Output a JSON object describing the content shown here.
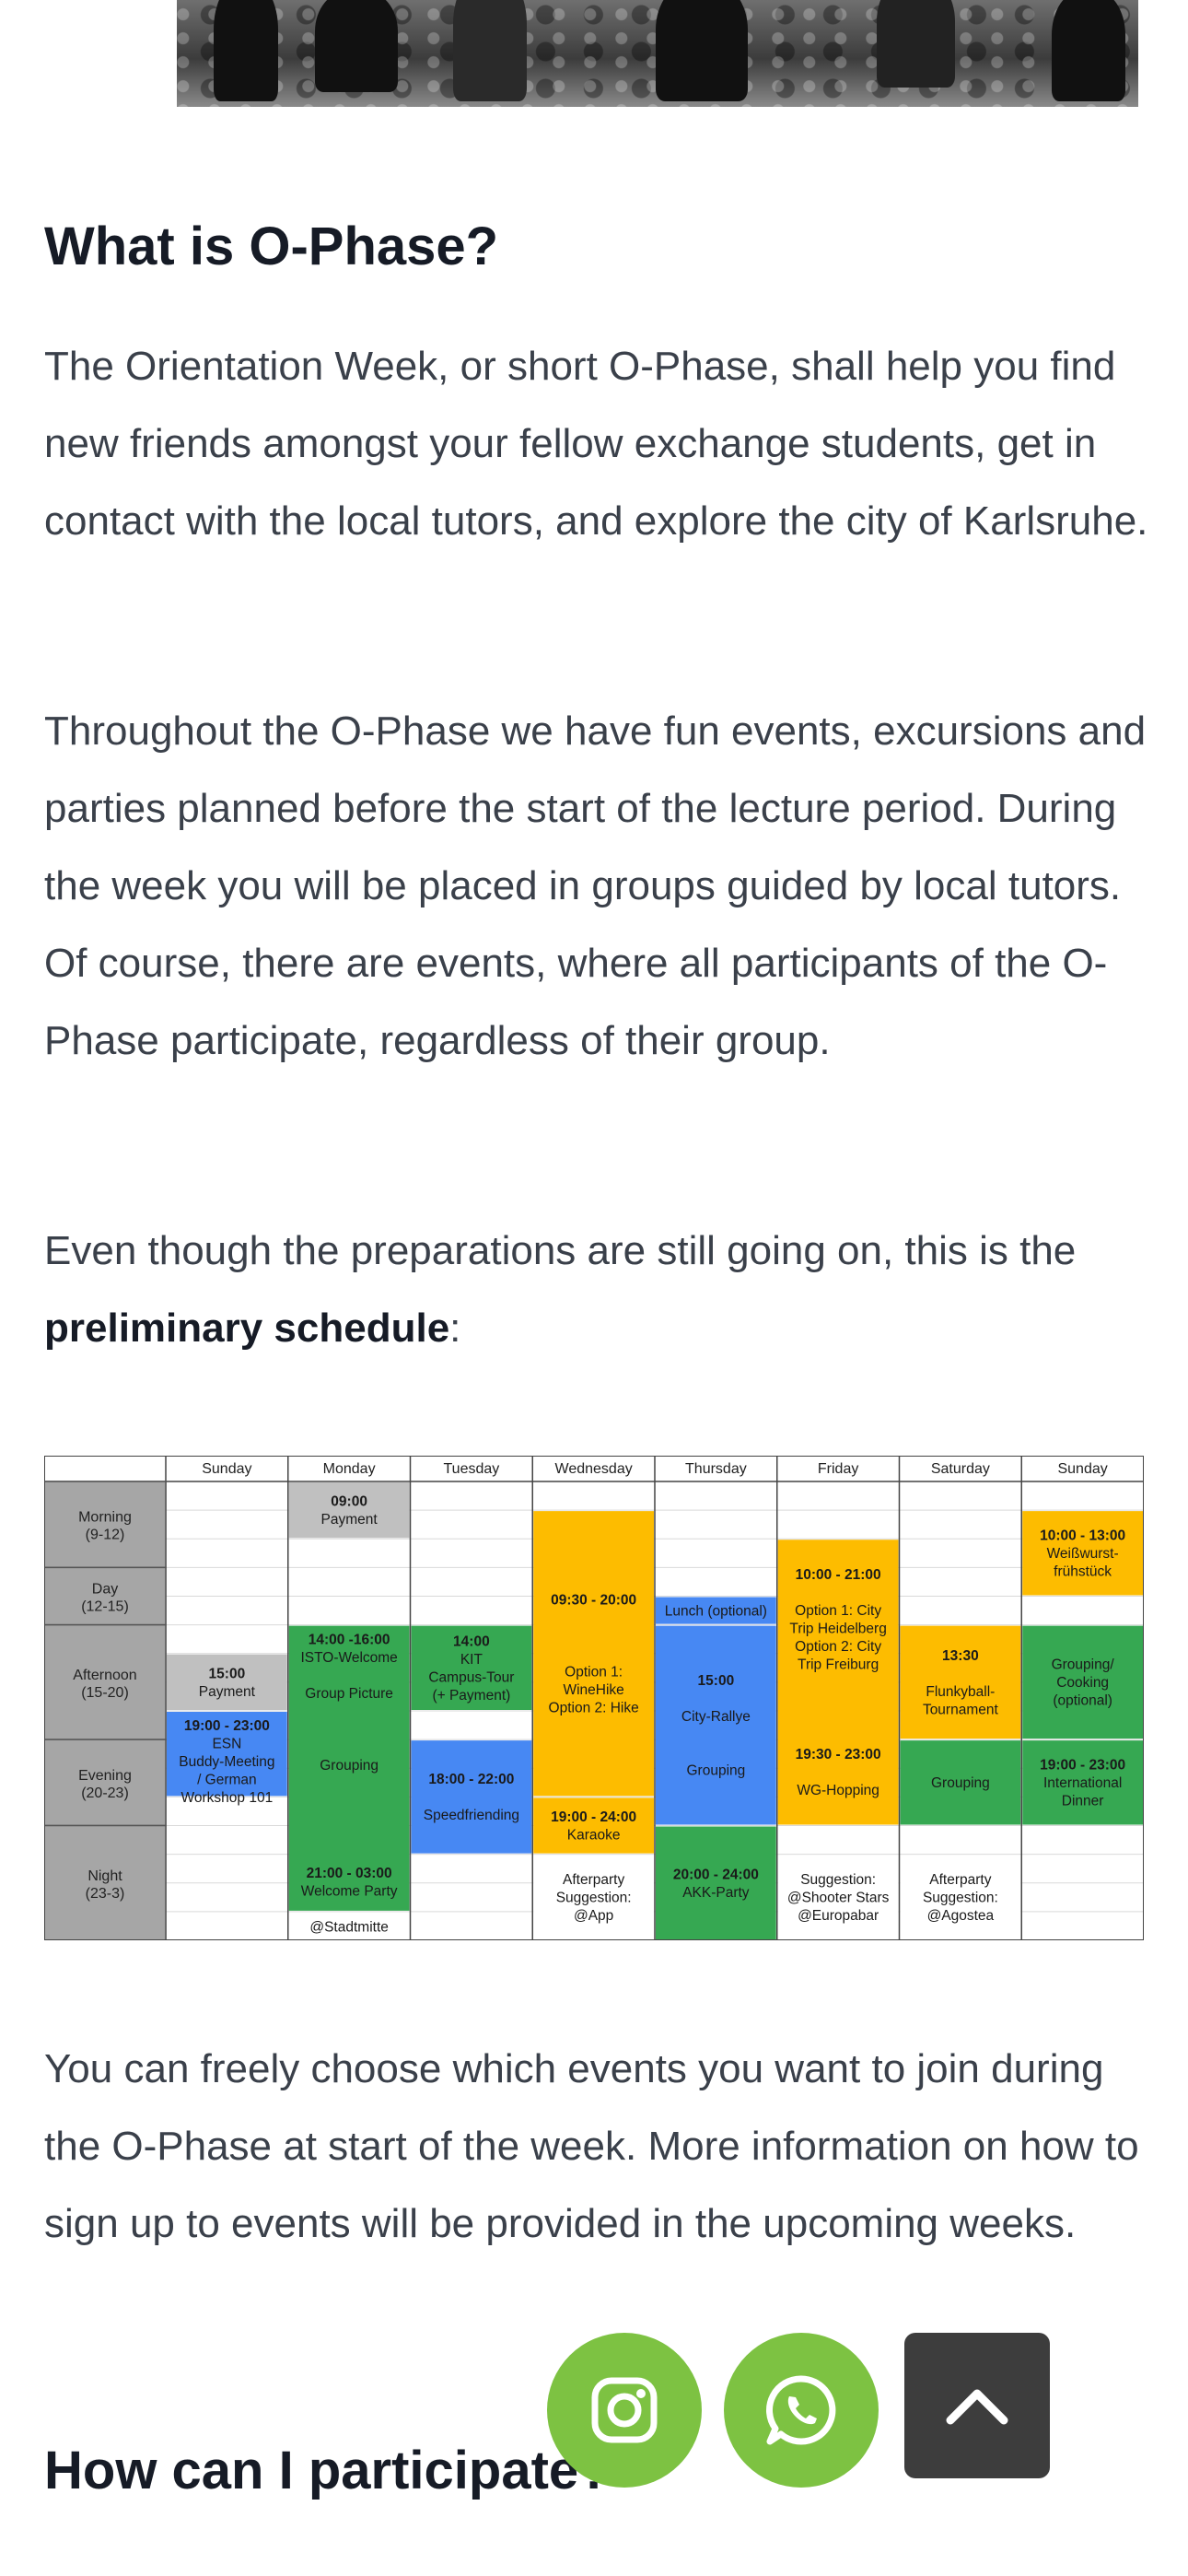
{
  "sections": {
    "what_heading": "What is O-Phase?",
    "intro_paragraph": "The Orientation Week, or short O-Phase, shall help you find new friends amongst your fellow exchange students, get in contact with the local tutors, and explore the city of Karlsruhe.",
    "events_paragraph": "Throughout the O-Phase we have fun events, excursions and parties planned before the start of the lecture period. During the week you will be placed in groups guided by local tutors. Of course, there are events, where all participants of the O-Phase participate, regardless of their group.",
    "schedule_intro": "Even though the preparations are still going on, this is the",
    "schedule_intro_bold": "preliminary schedule",
    "schedule_intro_end": ":",
    "choose_paragraph": "You can freely choose which events you want to join during the O-Phase at start of the week. More information on how to sign up to events will be provided in the upcoming weeks.",
    "participate_heading": "How can I participate?"
  },
  "schedule": {
    "days": [
      "Sunday",
      "Monday",
      "Tuesday",
      "Wednesday",
      "Thursday",
      "Friday",
      "Saturday",
      "Sunday"
    ],
    "periods": [
      {
        "name": "Morning",
        "range": "(9-12)"
      },
      {
        "name": "Day",
        "range": "(12-15)"
      },
      {
        "name": "Afternoon",
        "range": "(15-20)"
      },
      {
        "name": "Evening",
        "range": "(20-23)"
      },
      {
        "name": "Night",
        "range": "(23-3)"
      }
    ],
    "colors": {
      "gray": "#c0c0c0",
      "green": "#36a852",
      "orange": "#fdbc00",
      "blue": "#4788f3",
      "label_bg": "#a6a6a6",
      "white": "#ffffff"
    },
    "blocks": [
      {
        "day": 1,
        "start": 0,
        "end": 2,
        "color": "gray",
        "lines": [
          "09:00",
          "Payment"
        ],
        "bold": [
          0
        ]
      },
      {
        "day": 0,
        "start": 6,
        "end": 8,
        "color": "gray",
        "lines": [
          "15:00",
          "Payment"
        ],
        "bold": [
          0
        ]
      },
      {
        "day": 0,
        "start": 8,
        "end": 11,
        "color": "blue",
        "lines": [
          "19:00 - 23:00",
          "ESN",
          "Buddy-Meeting",
          "/ German",
          "Workshop 101"
        ],
        "bold": [
          0
        ]
      },
      {
        "day": 1,
        "start": 5,
        "end": 15,
        "color": "green",
        "lines": [
          "14:00 -16:00",
          "ISTO-Welcome",
          "",
          "Group Picture",
          "",
          "",
          "",
          "Grouping",
          "",
          "",
          "",
          "",
          "",
          "21:00 - 03:00",
          "Welcome Party",
          "",
          "@Stadtmitte"
        ],
        "bold": [
          0,
          13
        ]
      },
      {
        "day": 2,
        "start": 5,
        "end": 8,
        "color": "green",
        "lines": [
          "14:00",
          "KIT",
          "Campus-Tour",
          "(+ Payment)"
        ],
        "bold": [
          0
        ]
      },
      {
        "day": 2,
        "start": 9,
        "end": 13,
        "color": "blue",
        "lines": [
          "18:00 - 22:00",
          "",
          "Speedfriending"
        ],
        "bold": [
          0
        ]
      },
      {
        "day": 3,
        "start": 1,
        "end": 11,
        "color": "orange",
        "lines": [
          "09:30 - 20:00",
          "",
          "",
          "",
          "Option 1:",
          "WineHike",
          "Option 2: Hike"
        ],
        "bold": [
          0
        ]
      },
      {
        "day": 3,
        "start": 11,
        "end": 13,
        "color": "orange",
        "lines": [
          "19:00 - 24:00",
          "Karaoke"
        ],
        "bold": [
          0
        ]
      },
      {
        "day": 3,
        "start": 13,
        "end": 16,
        "color": "white",
        "lines": [
          "Afterparty",
          "Suggestion:",
          "@App"
        ],
        "bold": []
      },
      {
        "day": 4,
        "start": 4,
        "end": 5,
        "color": "blue",
        "lines": [
          "Lunch (optional)"
        ],
        "bold": []
      },
      {
        "day": 4,
        "start": 5,
        "end": 12,
        "color": "blue",
        "lines": [
          "15:00",
          "",
          "City-Rallye",
          "",
          "",
          "Grouping"
        ],
        "bold": [
          0
        ]
      },
      {
        "day": 4,
        "start": 12,
        "end": 16,
        "color": "green",
        "lines": [
          "20:00 - 24:00",
          "AKK-Party"
        ],
        "bold": [
          0
        ]
      },
      {
        "day": 5,
        "start": 2,
        "end": 12,
        "color": "orange",
        "lines": [
          "10:00 - 21:00",
          "",
          "Option 1: City",
          "Trip Heidelberg",
          "Option 2: City",
          "Trip Freiburg",
          "",
          "",
          "",
          "",
          "19:30 - 23:00",
          "",
          "WG-Hopping"
        ],
        "bold": [
          0,
          10
        ]
      },
      {
        "day": 5,
        "start": 13,
        "end": 16,
        "color": "white",
        "lines": [
          "Suggestion:",
          "@Shooter Stars",
          "@Europabar"
        ],
        "bold": []
      },
      {
        "day": 6,
        "start": 5,
        "end": 9,
        "color": "orange",
        "lines": [
          "13:30",
          "",
          "Flunkyball-",
          "Tournament"
        ],
        "bold": [
          0
        ]
      },
      {
        "day": 6,
        "start": 9,
        "end": 12,
        "color": "green",
        "lines": [
          "Grouping"
        ],
        "bold": []
      },
      {
        "day": 6,
        "start": 13,
        "end": 16,
        "color": "white",
        "lines": [
          "Afterparty",
          "Suggestion:",
          "@Agostea"
        ],
        "bold": []
      },
      {
        "day": 7,
        "start": 1,
        "end": 4,
        "color": "orange",
        "lines": [
          "10:00 - 13:00",
          "Weißwurst-",
          "frühstück"
        ],
        "bold": [
          0
        ]
      },
      {
        "day": 7,
        "start": 5,
        "end": 9,
        "color": "green",
        "lines": [
          "Grouping/",
          "Cooking",
          "(optional)"
        ],
        "bold": []
      },
      {
        "day": 7,
        "start": 9,
        "end": 12,
        "color": "green",
        "lines": [
          "19:00 - 23:00",
          "International",
          "Dinner"
        ],
        "bold": [
          0
        ]
      }
    ]
  },
  "fabs": {
    "instagram_icon": "instagram-icon",
    "whatsapp_icon": "whatsapp-icon",
    "scroll_top_icon": "chevron-up-icon",
    "accent": "#7dc242",
    "dark": "#3d3d3d"
  }
}
